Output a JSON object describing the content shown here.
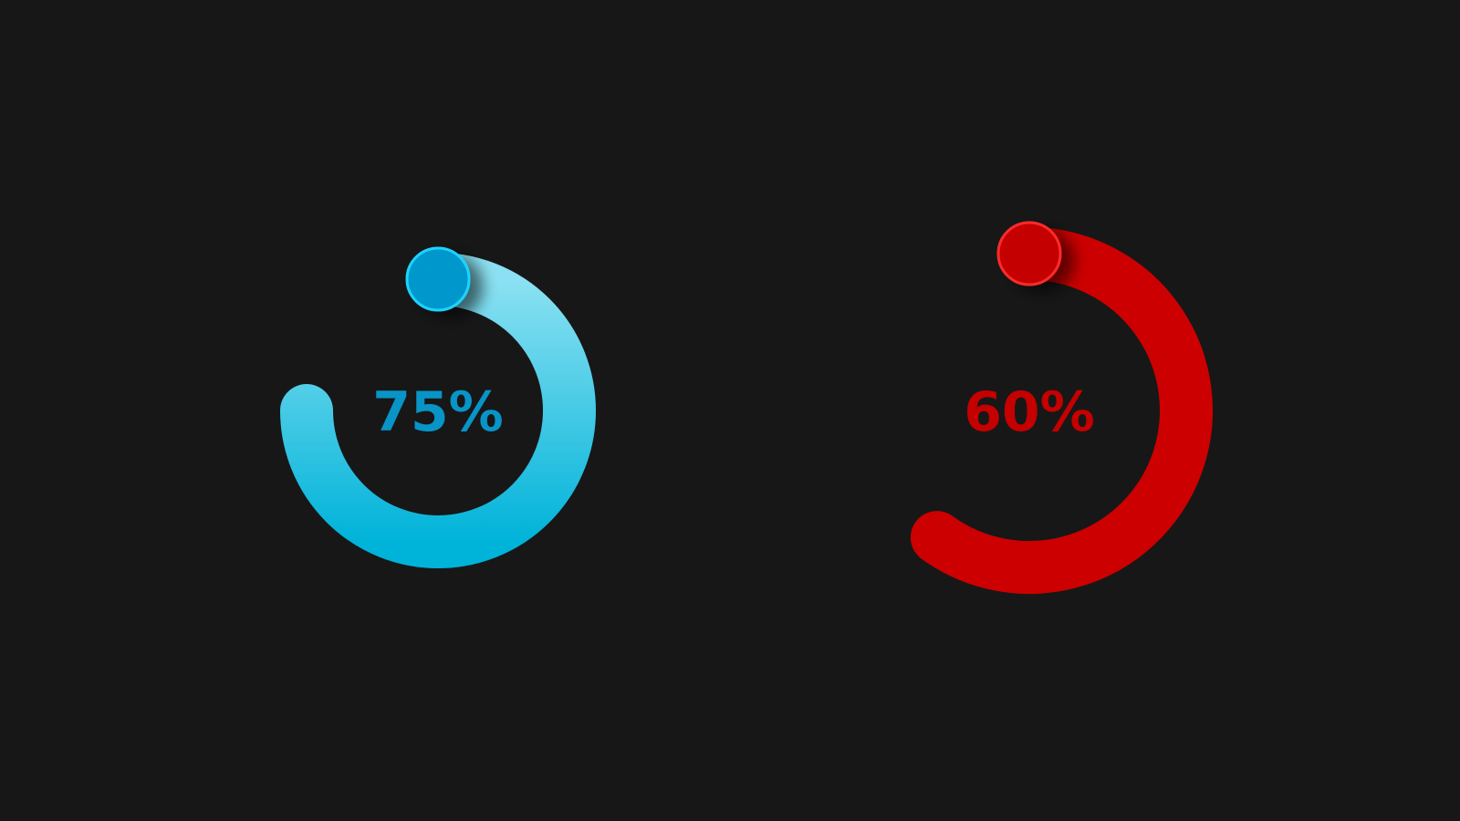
{
  "gauges": [
    {
      "label": "75%",
      "progress": 0.75,
      "color_start": "#8be1f2",
      "color_end": "#00b3d9",
      "knob_color": "#0698cc",
      "knob_rim": "#1ad4ff",
      "label_color": "#0894c7"
    },
    {
      "label": "60%",
      "progress": 0.6,
      "color_start": "#cc0000",
      "color_end": "#cc0000",
      "knob_color": "#c40000",
      "knob_rim": "#ff2a2a",
      "label_color": "#c40000"
    }
  ]
}
